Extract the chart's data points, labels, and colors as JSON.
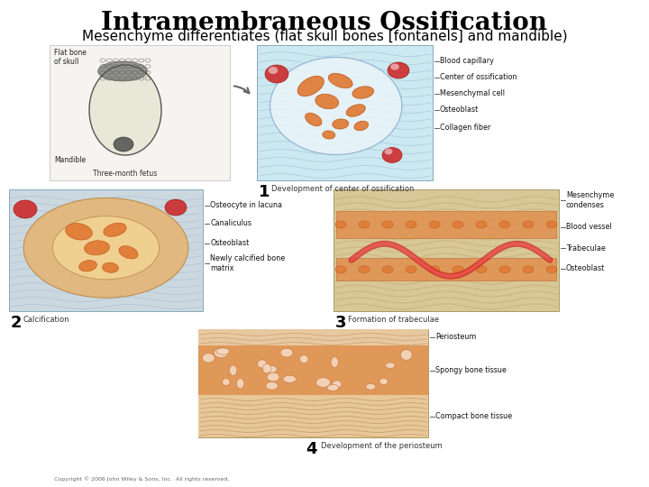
{
  "title": "Intramembraneous Ossification",
  "subtitle": "Mesenchyme differentiates (flat skull bones [fontanels] and mandible)",
  "title_fontsize": 20,
  "subtitle_fontsize": 11,
  "background_color": "#ffffff",
  "text_color": "#000000",
  "label1": "1",
  "label2": "2",
  "label3": "3",
  "label4": "4",
  "label1_desc": "Development of center of ossification",
  "label2_desc": "Calcification",
  "label3_desc": "Formation of trabeculae",
  "label4_desc": "Development of the periosteum",
  "caption": "Copyright © 2006 John Wiley & Sons, Inc.  All rights reserved.",
  "panel1_bg": "#cce8ef",
  "panel2_bg": "#cce0e8",
  "panel3_bg": "#d8c8a8",
  "panel4_bg": "#e8d4b0",
  "orange_cell": "#e07832",
  "orange_dark": "#c05818",
  "red_blood": "#cc2020",
  "red_dark": "#991010",
  "skull_fill": "#888888",
  "skull_outline": "#333333"
}
